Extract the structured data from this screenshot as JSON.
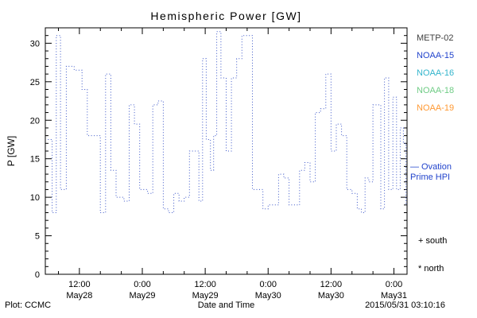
{
  "footer": {
    "plot_credit": "Plot: CCMC",
    "timestamp": "2015/05/31 03:10:16"
  },
  "legend": {
    "satellites": [
      {
        "label": "METP-02",
        "color": "#404040"
      },
      {
        "label": "NOAA-15",
        "color": "#2244cc"
      },
      {
        "label": "NOAA-16",
        "color": "#33b5cc"
      },
      {
        "label": "NOAA-18",
        "color": "#6fcc85"
      },
      {
        "label": "NOAA-19",
        "color": "#ff9933"
      }
    ],
    "model_label_line1": "— Ovation",
    "model_label_line2": "Prime HPI",
    "model_color": "#2244cc",
    "south_marker": "+ south",
    "north_marker": "* north"
  },
  "chart_data": {
    "type": "line",
    "title": "Hemispheric Power [GW]",
    "xlabel": "Date and Time",
    "ylabel": "P [GW]",
    "ylim": [
      0,
      32
    ],
    "yticks": [
      0,
      5,
      10,
      15,
      20,
      25,
      30
    ],
    "xlim_hours": [
      5.5,
      74.5
    ],
    "x_unit": "hours from 2015 May28 00:00",
    "xticks": [
      {
        "hour": 12,
        "time": "12:00",
        "date": "May28"
      },
      {
        "hour": 24,
        "time": "0:00",
        "date": "May29"
      },
      {
        "hour": 36,
        "time": "12:00",
        "date": "May29"
      },
      {
        "hour": 48,
        "time": "0:00",
        "date": "May30"
      },
      {
        "hour": 60,
        "time": "12:00",
        "date": "May30"
      },
      {
        "hour": 72,
        "time": "0:00",
        "date": "May31"
      }
    ],
    "line_color": "#3a55c8",
    "line_style": "dotted",
    "step": true,
    "points": [
      [
        6.0,
        17.5
      ],
      [
        6.8,
        8
      ],
      [
        7.6,
        31
      ],
      [
        8.4,
        11
      ],
      [
        9.5,
        27
      ],
      [
        11.0,
        26.5
      ],
      [
        12.5,
        24
      ],
      [
        13.5,
        18
      ],
      [
        15.0,
        18
      ],
      [
        16.0,
        8
      ],
      [
        17.0,
        26
      ],
      [
        18.0,
        13.5
      ],
      [
        19.0,
        10
      ],
      [
        20.5,
        9.5
      ],
      [
        21.5,
        22
      ],
      [
        22.5,
        19.5
      ],
      [
        23.5,
        11
      ],
      [
        25.0,
        10.5
      ],
      [
        26.0,
        22
      ],
      [
        27.0,
        22.5
      ],
      [
        28.0,
        8.5
      ],
      [
        29.0,
        8
      ],
      [
        30.0,
        10.5
      ],
      [
        31.0,
        9.5
      ],
      [
        32.0,
        10
      ],
      [
        33.0,
        16
      ],
      [
        34.0,
        16
      ],
      [
        34.8,
        9.5
      ],
      [
        35.5,
        28
      ],
      [
        36.2,
        17.5
      ],
      [
        37.0,
        13.5
      ],
      [
        37.6,
        18
      ],
      [
        38.2,
        31.5
      ],
      [
        39.0,
        25.5
      ],
      [
        40.0,
        16
      ],
      [
        41.0,
        25.5
      ],
      [
        42.0,
        28
      ],
      [
        43.0,
        31
      ],
      [
        44.0,
        31
      ],
      [
        45.0,
        11
      ],
      [
        46.0,
        11
      ],
      [
        47.0,
        8.5
      ],
      [
        48.0,
        9
      ],
      [
        49.0,
        9
      ],
      [
        50.0,
        13
      ],
      [
        51.0,
        12.5
      ],
      [
        52.0,
        9
      ],
      [
        53.0,
        9
      ],
      [
        54.0,
        13.5
      ],
      [
        55.0,
        14.5
      ],
      [
        56.0,
        12
      ],
      [
        57.0,
        21
      ],
      [
        58.0,
        21.5
      ],
      [
        59.0,
        26
      ],
      [
        60.0,
        16
      ],
      [
        61.0,
        19.5
      ],
      [
        62.0,
        18
      ],
      [
        63.0,
        11
      ],
      [
        64.0,
        10.5
      ],
      [
        65.0,
        8.5
      ],
      [
        65.8,
        8
      ],
      [
        66.5,
        12.5
      ],
      [
        67.2,
        12
      ],
      [
        68.0,
        22
      ],
      [
        68.8,
        22
      ],
      [
        69.5,
        8.5
      ],
      [
        70.2,
        25.5
      ],
      [
        71.0,
        11
      ],
      [
        71.8,
        23
      ],
      [
        72.5,
        11
      ],
      [
        73.2,
        19
      ],
      [
        73.8,
        17
      ],
      [
        74.3,
        9
      ]
    ]
  }
}
